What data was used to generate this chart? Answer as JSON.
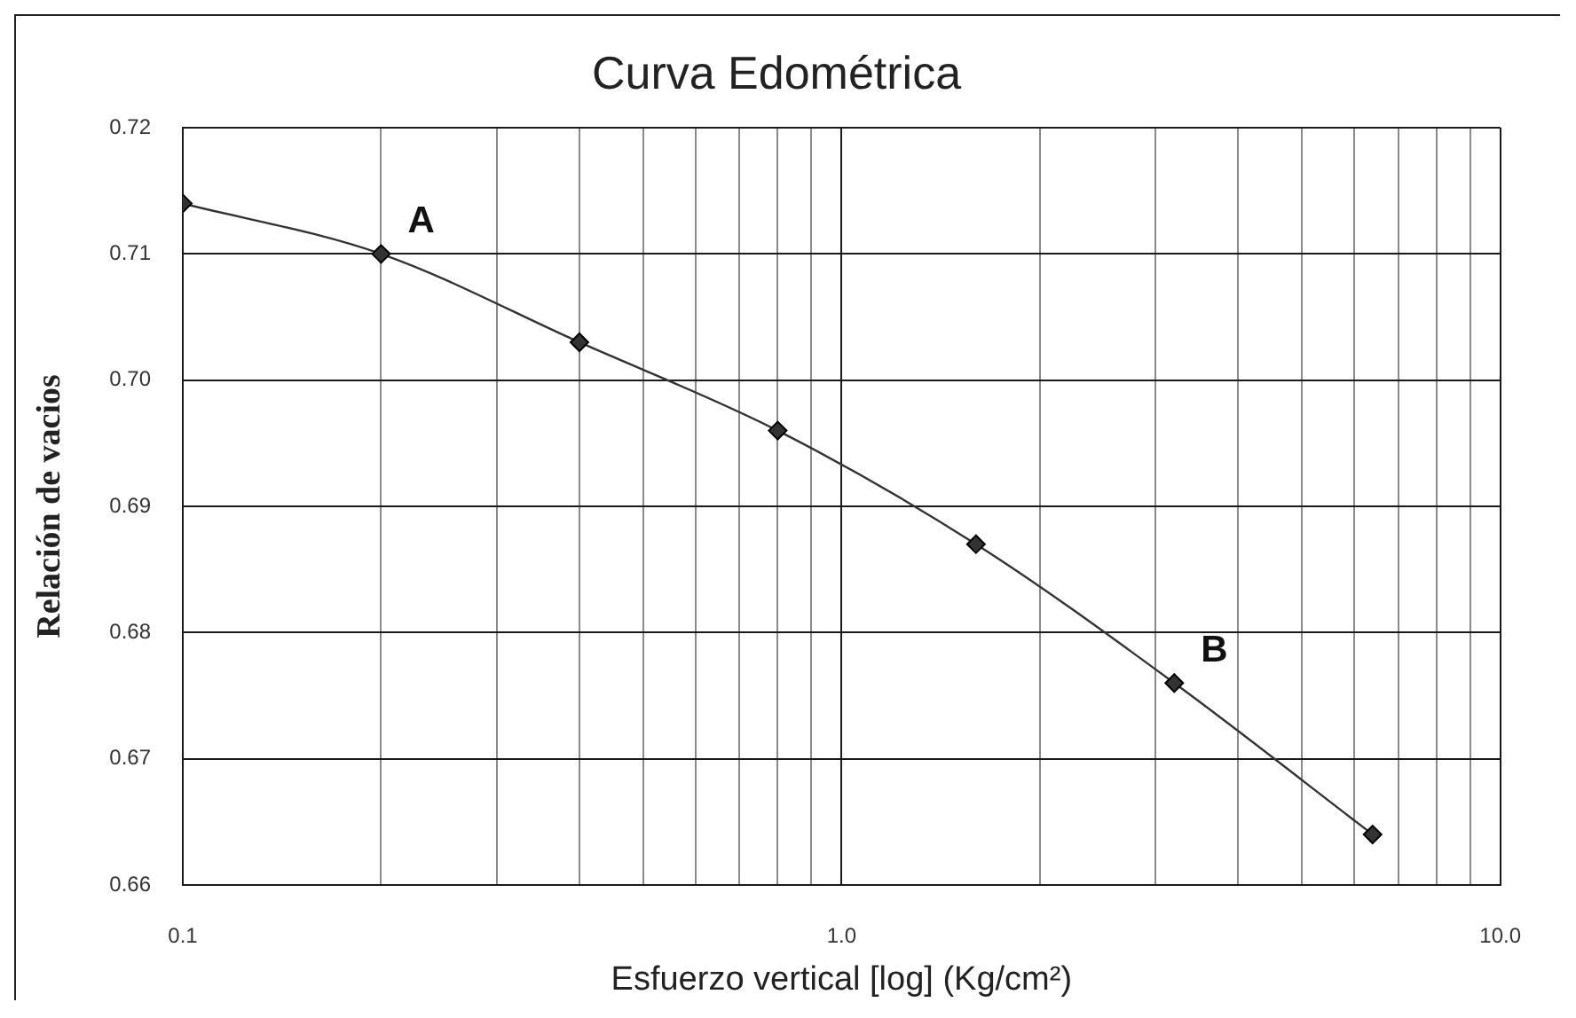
{
  "chart_data": {
    "type": "line",
    "title": "Curva Edométrica",
    "xlabel": "Esfuerzo vertical [log] (Kg/cm²)",
    "ylabel": "Relación de vacios",
    "x": [
      0.1,
      0.2,
      0.4,
      0.8,
      1.6,
      3.2,
      6.4
    ],
    "series": [
      {
        "color": "#333333",
        "values": [
          0.714,
          0.71,
          0.703,
          0.696,
          0.687,
          0.676,
          0.664
        ]
      }
    ],
    "xlim": [
      0.1,
      10
    ],
    "xticks": [
      0.1,
      {
        "value": 0.2,
        "label": null
      },
      {
        "value": 0.3,
        "label": null
      },
      {
        "value": 0.4,
        "label": null
      },
      {
        "value": 0.5,
        "label": null
      },
      {
        "value": 0.6,
        "label": null
      },
      {
        "value": 0.7,
        "label": null
      },
      {
        "value": 0.8,
        "label": null
      },
      {
        "value": 0.9,
        "label": null
      },
      {
        "value": 1,
        "label": "1.0"
      },
      {
        "value": 2,
        "label": null
      },
      {
        "value": 3,
        "label": null
      },
      {
        "value": 4,
        "label": null
      },
      {
        "value": 5,
        "label": null
      },
      {
        "value": 6,
        "label": null
      },
      {
        "value": 7,
        "label": null
      },
      {
        "value": 8,
        "label": null
      },
      {
        "value": 9,
        "label": null
      },
      {
        "value": 10,
        "label": "10.0"
      }
    ],
    "ylim": [
      0.66,
      0.72
    ],
    "yticks": [
      0.66,
      0.67,
      0.68,
      0.69,
      {
        "value": 0.7,
        "label": "0.70"
      },
      0.71,
      0.72
    ],
    "log": "x",
    "grid": true,
    "marker": "diamond",
    "line_style": "solid",
    "annotations": [
      {
        "text": "A",
        "x": 0.2,
        "y": 0.71
      },
      {
        "text": "B",
        "x": 3.2,
        "y": 0.676
      }
    ]
  }
}
